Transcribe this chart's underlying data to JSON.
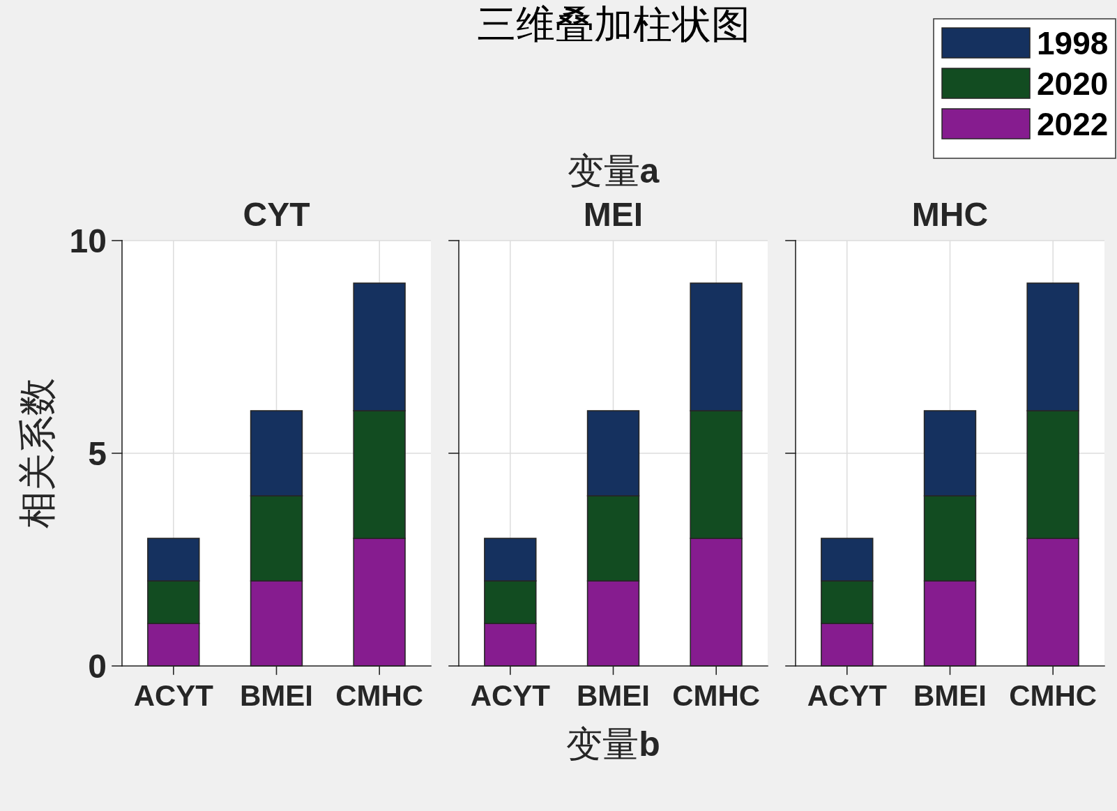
{
  "chart_data": [
    {
      "type": "bar",
      "stacked": true,
      "subtitle": "CYT",
      "ylabel": "相关系数",
      "categories": [
        "ACYT",
        "BMEI",
        "CMHC"
      ],
      "ylim": [
        0,
        10
      ],
      "yticks": [
        0,
        5,
        10
      ],
      "grid": true,
      "legend": "top right",
      "series": [
        {
          "name": "2022",
          "color": "#861c8f",
          "values": [
            1,
            2,
            3
          ]
        },
        {
          "name": "2020",
          "color": "#124c21",
          "values": [
            1,
            2,
            3
          ]
        },
        {
          "name": "1998",
          "color": "#15315f",
          "values": [
            1,
            2,
            3
          ]
        }
      ]
    },
    {
      "type": "bar",
      "stacked": true,
      "title": "三维叠加柱状图",
      "subtitle": "MEI",
      "xlabel": "变量b",
      "annotations": [
        "变量a"
      ],
      "categories": [
        "ACYT",
        "BMEI",
        "CMHC"
      ],
      "ylim": [
        0,
        10
      ],
      "yticks": [
        0,
        5,
        10
      ],
      "tick_labels": "x",
      "grid": true,
      "series": [
        {
          "color": "#861c8f",
          "values": [
            1,
            2,
            3
          ]
        },
        {
          "color": "#124c21",
          "values": [
            1,
            2,
            3
          ]
        },
        {
          "color": "#15315f",
          "values": [
            1,
            2,
            3
          ]
        }
      ]
    },
    {
      "type": "bar",
      "stacked": true,
      "subtitle": "MHC",
      "categories": [
        "ACYT",
        "BMEI",
        "CMHC"
      ],
      "ylim": [
        0,
        10
      ],
      "yticks": [
        0,
        5,
        10
      ],
      "tick_labels": "x",
      "grid": true,
      "series": [
        {
          "color": "#861c8f",
          "values": [
            1,
            2,
            3
          ]
        },
        {
          "color": "#124c21",
          "values": [
            1,
            2,
            3
          ]
        },
        {
          "color": "#15315f",
          "values": [
            1,
            2,
            3
          ]
        }
      ]
    }
  ]
}
